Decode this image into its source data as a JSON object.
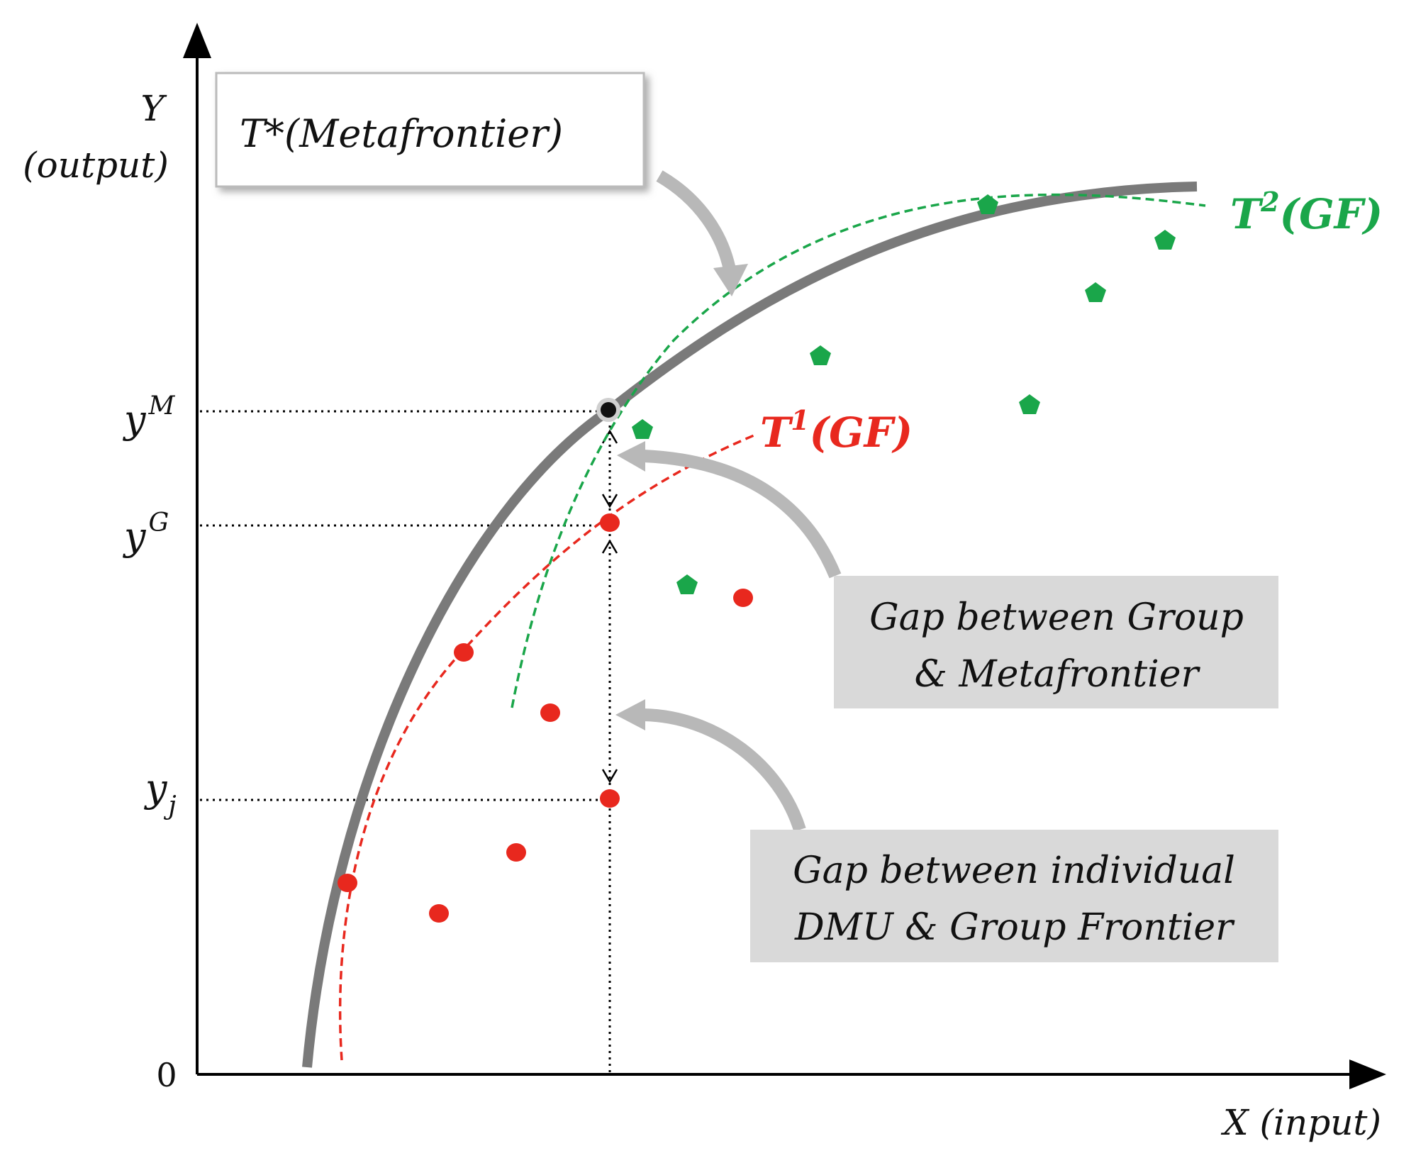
{
  "axes": {
    "y_label_line1": "Y",
    "y_label_line2": "(output)",
    "x_label": "X (input)",
    "origin": "0"
  },
  "levels": {
    "y_m": {
      "base": "y",
      "sup": "M"
    },
    "y_g": {
      "base": "y",
      "sup": "G"
    },
    "y_j": {
      "base": "y",
      "sub": "j"
    }
  },
  "labels": {
    "metafrontier_box": "T*(Metafrontier)",
    "t1_base": "T",
    "t1_sup": "1",
    "t1_tail": "(GF)",
    "t2_base": "T",
    "t2_sup": "2",
    "t2_tail": "(GF)",
    "gap_group_line1": "Gap between Group",
    "gap_group_line2": "& Metafrontier",
    "gap_indiv_line1": "Gap between individual",
    "gap_indiv_line2": "DMU & Group Frontier"
  },
  "colors": {
    "metafrontier": "#7a7a7a",
    "group1": "#e8281e",
    "group2": "#1aa64a",
    "callout_arrow": "#b8b8b8",
    "gap_box": "#d9d9d9"
  }
}
